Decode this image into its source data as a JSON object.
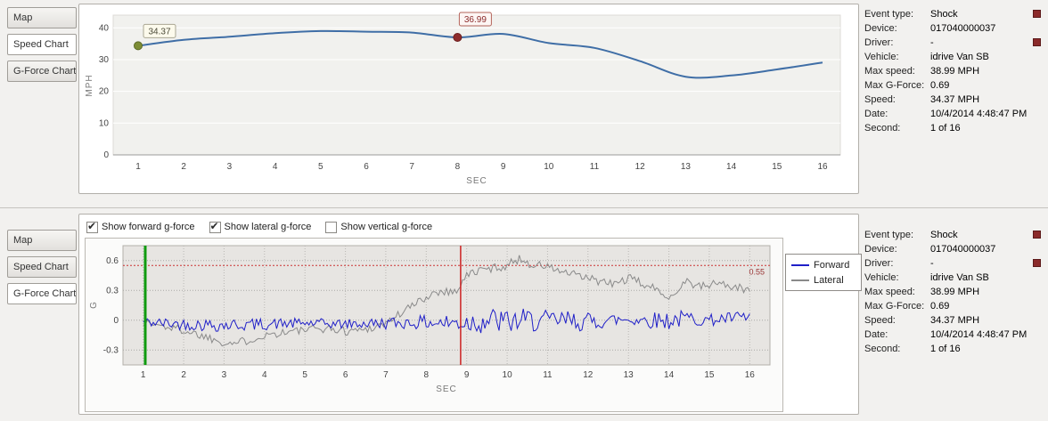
{
  "colors": {
    "accent_blue": "#3f6ea6",
    "forward_blue": "#1f1fc8",
    "lateral_gray": "#8a8a8a",
    "marker_green": "#7d8d35",
    "marker_red": "#8e2c2c",
    "cursor_green": "#0f9b0f",
    "cursor_red": "#cc2222",
    "threshold_red": "#cc3333"
  },
  "tabs": [
    "Map",
    "Speed Chart",
    "G-Force Chart"
  ],
  "top_panel": {
    "active_tab": "Speed Chart"
  },
  "bottom_panel": {
    "active_tab": "G-Force Chart",
    "checkboxes": [
      {
        "label": "Show forward g-force",
        "checked": true
      },
      {
        "label": "Show lateral g-force",
        "checked": true
      },
      {
        "label": "Show vertical g-force",
        "checked": false
      }
    ]
  },
  "event_info": {
    "rows": [
      {
        "label": "Event type:",
        "value": "Shock",
        "flag": true
      },
      {
        "label": "Device:",
        "value": "017040000037"
      },
      {
        "label": "Driver:",
        "value": "-",
        "flag": true
      },
      {
        "label": "Vehicle:",
        "value": "idrive Van SB"
      },
      {
        "label": "Max speed:",
        "value": "38.99 MPH"
      },
      {
        "label": "Max G-Force:",
        "value": "0.69"
      },
      {
        "label": "Speed:",
        "value": "34.37 MPH"
      },
      {
        "label": "Date:",
        "value": "10/4/2014 4:48:47 PM"
      },
      {
        "label": "Second:",
        "value": "1 of 16"
      }
    ]
  },
  "chart_data": [
    {
      "type": "line",
      "xlabel": "SEC",
      "ylabel": "MPH",
      "x": [
        1,
        2,
        3,
        4,
        5,
        6,
        7,
        8,
        9,
        10,
        11,
        12,
        13,
        14,
        15,
        16
      ],
      "values": [
        34.37,
        36.2,
        37.2,
        38.3,
        38.99,
        38.8,
        38.5,
        36.99,
        38.1,
        35.2,
        33.7,
        29.5,
        24.6,
        25.0,
        26.9,
        29.1
      ],
      "ylim": [
        0,
        40
      ],
      "yticks": [
        0,
        10,
        20,
        30,
        40
      ],
      "grid": "horizontal",
      "markers": [
        {
          "x": 1,
          "y": 34.37,
          "label": "34.37",
          "color": "green"
        },
        {
          "x": 8,
          "y": 36.99,
          "label": "36.99",
          "color": "red"
        }
      ]
    },
    {
      "type": "line",
      "xlabel": "SEC",
      "ylabel": "G",
      "xlim": [
        0.5,
        16.5
      ],
      "ylim": [
        -0.45,
        0.75
      ],
      "xticks": [
        1,
        2,
        3,
        4,
        5,
        6,
        7,
        8,
        9,
        10,
        11,
        12,
        13,
        14,
        15,
        16
      ],
      "yticks": [
        -0.3,
        0,
        0.3,
        0.6
      ],
      "grid": "dotted-both",
      "legend_position": "right",
      "threshold": {
        "y": 0.55,
        "label": "0.55"
      },
      "cursors": [
        {
          "x": 1.05,
          "color": "green"
        },
        {
          "x": 8.85,
          "color": "red"
        }
      ],
      "noise_step": 0.05,
      "series": [
        {
          "name": "Forward",
          "color_key": "forward_blue",
          "seed": 42,
          "x": [
            1,
            2,
            3,
            4,
            5,
            6,
            7,
            8,
            8.5,
            9,
            9.5,
            10,
            10.5,
            11,
            11.5,
            12,
            12.5,
            13,
            13.5,
            14,
            14.5,
            15,
            15.5,
            16
          ],
          "mean": [
            -0.02,
            -0.04,
            -0.05,
            -0.04,
            -0.03,
            -0.04,
            -0.03,
            -0.02,
            -0.03,
            -0.02,
            0,
            -0.02,
            0,
            -0.01,
            0,
            -0.02,
            0,
            0.01,
            0,
            0,
            0.02,
            0,
            0.02,
            0.03
          ],
          "amp": [
            0.05,
            0.06,
            0.07,
            0.06,
            0.05,
            0.05,
            0.06,
            0.07,
            0.09,
            0.12,
            0.14,
            0.13,
            0.12,
            0.11,
            0.1,
            0.1,
            0.07,
            0.07,
            0.08,
            0.1,
            0.08,
            0.06,
            0.06,
            0.07
          ]
        },
        {
          "name": "Lateral",
          "color_key": "lateral_gray",
          "seed": 1337,
          "x": [
            1.0,
            1.5,
            2.0,
            2.5,
            3.0,
            3.3,
            3.6,
            4.0,
            4.5,
            5.0,
            5.5,
            6.0,
            6.5,
            7.0,
            7.4,
            7.8,
            8.1,
            8.4,
            8.7,
            9.0,
            9.3,
            9.6,
            10.0,
            10.3,
            10.6,
            11.0,
            11.4,
            11.8,
            12.2,
            12.6,
            13.0,
            13.4,
            13.8,
            14.1,
            14.4,
            14.8,
            15.2,
            15.6,
            16.0
          ],
          "mean": [
            -0.02,
            -0.06,
            -0.1,
            -0.16,
            -0.22,
            -0.23,
            -0.2,
            -0.15,
            -0.12,
            -0.1,
            -0.08,
            -0.11,
            -0.09,
            -0.03,
            0.08,
            0.18,
            0.26,
            0.3,
            0.28,
            0.45,
            0.5,
            0.52,
            0.55,
            0.62,
            0.56,
            0.54,
            0.48,
            0.44,
            0.4,
            0.36,
            0.42,
            0.36,
            0.28,
            0.24,
            0.4,
            0.33,
            0.38,
            0.33,
            0.3
          ],
          "amp": 0.045
        }
      ]
    }
  ]
}
